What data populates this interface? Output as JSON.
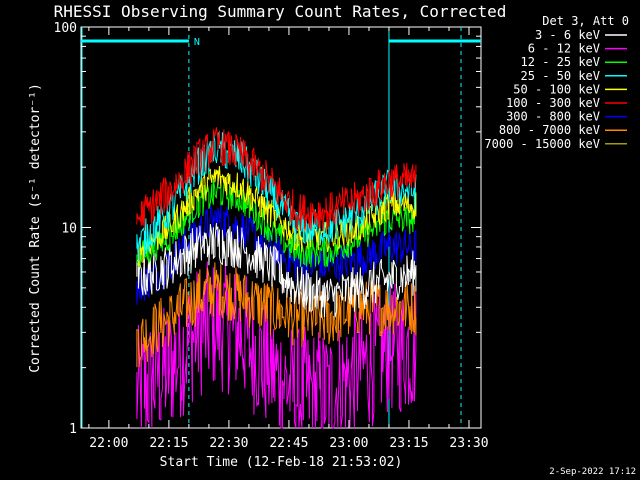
{
  "chart_data": {
    "type": "line",
    "title": "RHESSI Observing Summary Count Rates, Corrected",
    "xlabel": "Start Time (12-Feb-18 21:53:02)",
    "ylabel": "Corrected Count Rate (s⁻¹ detector⁻¹)",
    "yscale": "log",
    "ylim": [
      1,
      100
    ],
    "xlim": [
      "21:53:02",
      "23:33:00"
    ],
    "x_ticks": [
      "22:00",
      "22:15",
      "22:30",
      "22:45",
      "23:00",
      "23:15",
      "23:30"
    ],
    "y_ticks": [
      "1",
      "10",
      "100"
    ],
    "legend_title": "Det 3, Att 0",
    "legend_position": "top-right",
    "timestamp": "2-Sep-2022 17:12",
    "night_marker": "N",
    "day_intervals": [
      [
        "21:53:02",
        "22:20:00"
      ],
      [
        "23:10:00",
        "23:33:00"
      ]
    ],
    "night_boundaries": [
      "22:20:00",
      "23:10:00",
      "23:28:00"
    ],
    "data_span": [
      "22:07",
      "23:17"
    ],
    "series": [
      {
        "name": "3 - 6 keV",
        "color": "#ffffff",
        "x": [
          "22:07",
          "22:15",
          "22:22",
          "22:27",
          "22:33",
          "22:40",
          "22:47",
          "22:55",
          "23:03",
          "23:10",
          "23:17"
        ],
        "y": [
          5.5,
          6.5,
          8,
          8.5,
          8,
          6.5,
          5,
          4.5,
          5,
          5.5,
          6
        ]
      },
      {
        "name": "6 - 12 keV",
        "color": "#ff00ff",
        "x": [
          "22:07",
          "22:15",
          "22:22",
          "22:27",
          "22:33",
          "22:40",
          "22:47",
          "22:55",
          "23:03",
          "23:10",
          "23:17"
        ],
        "y": [
          1.5,
          2,
          3,
          3.3,
          3,
          2,
          1.5,
          1.5,
          2,
          2.5,
          2.5
        ]
      },
      {
        "name": "12 - 25 keV",
        "color": "#00ff00",
        "x": [
          "22:07",
          "22:15",
          "22:22",
          "22:27",
          "22:33",
          "22:40",
          "22:47",
          "22:55",
          "23:03",
          "23:10",
          "23:17"
        ],
        "y": [
          7,
          9,
          13,
          15,
          14,
          10,
          7.5,
          7.5,
          9,
          11,
          11
        ]
      },
      {
        "name": "25 - 50 keV",
        "color": "#00ffff",
        "x": [
          "22:07",
          "22:15",
          "22:22",
          "22:27",
          "22:33",
          "22:40",
          "22:47",
          "22:55",
          "23:03",
          "23:10",
          "23:17"
        ],
        "y": [
          8,
          12,
          20,
          25,
          22,
          15,
          10,
          10,
          12,
          16,
          15
        ]
      },
      {
        "name": "50 - 100 keV",
        "color": "#ffff00",
        "x": [
          "22:07",
          "22:15",
          "22:22",
          "22:27",
          "22:33",
          "22:40",
          "22:47",
          "22:55",
          "23:03",
          "23:10",
          "23:17"
        ],
        "y": [
          7.5,
          10,
          15,
          18,
          16,
          12,
          9,
          9,
          10,
          13,
          13
        ]
      },
      {
        "name": "100 - 300 keV",
        "color": "#ff0000",
        "x": [
          "22:07",
          "22:15",
          "22:22",
          "22:27",
          "22:33",
          "22:40",
          "22:47",
          "22:55",
          "23:03",
          "23:10",
          "23:17"
        ],
        "y": [
          11,
          15,
          22,
          26,
          23,
          17,
          12,
          12,
          14,
          17,
          17
        ]
      },
      {
        "name": "300 - 800 keV",
        "color": "#0000ff",
        "x": [
          "22:07",
          "22:15",
          "22:22",
          "22:27",
          "22:33",
          "22:40",
          "22:47",
          "22:55",
          "23:03",
          "23:10",
          "23:17"
        ],
        "y": [
          5,
          6.5,
          9.5,
          11,
          10,
          8,
          6.5,
          6.5,
          7,
          8,
          8
        ]
      },
      {
        "name": "800 - 7000 keV",
        "color": "#ff8800",
        "x": [
          "22:07",
          "22:15",
          "22:22",
          "22:27",
          "22:33",
          "22:40",
          "22:47",
          "22:55",
          "23:03",
          "23:10",
          "23:17"
        ],
        "y": [
          2.7,
          3.5,
          4.5,
          5,
          4.5,
          4,
          3.5,
          3.5,
          4,
          4,
          4
        ]
      },
      {
        "name": "7000 - 15000 keV",
        "color": "#a0a000",
        "x": [],
        "y": []
      }
    ]
  }
}
